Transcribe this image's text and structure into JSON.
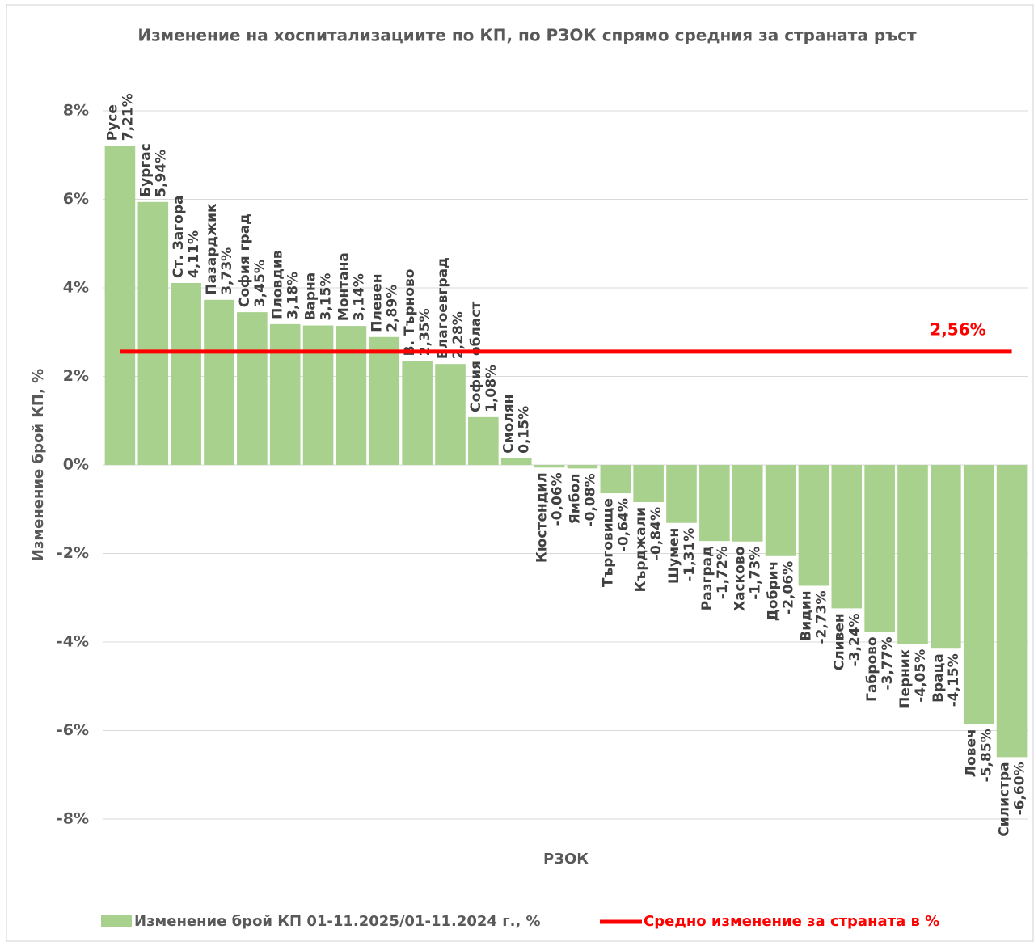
{
  "chart_data": {
    "type": "bar",
    "title": "Изменение на хоспитализациите по КП, по РЗОК спрямо средния за страната ръст",
    "x_label": "РЗОК",
    "y_label": "Изменение брой КП, %",
    "categories": [
      "Русе",
      "Бургас",
      "Ст. Загора",
      "Пазарджик",
      "София град",
      "Пловдив",
      "Варна",
      "Монтана",
      "Плевен",
      "В. Търново",
      "Благоевград",
      "София област",
      "Смолян",
      "Кюстендил",
      "Ямбол",
      "Търговище",
      "Кърджали",
      "Шумен",
      "Разград",
      "Хасково",
      "Добрич",
      "Видин",
      "Сливен",
      "Габрово",
      "Перник",
      "Враца",
      "Ловеч",
      "Силистра"
    ],
    "series": [
      {
        "name": "Изменение брой КП 01-11.2025/01-11.2024 г., %",
        "color": "#a9d18e",
        "values": [
          7.21,
          5.94,
          4.11,
          3.73,
          3.45,
          3.18,
          3.15,
          3.14,
          2.89,
          2.35,
          2.28,
          1.08,
          0.15,
          -0.06,
          -0.08,
          -0.64,
          -0.84,
          -1.31,
          -1.72,
          -1.73,
          -2.06,
          -2.73,
          -3.24,
          -3.77,
          -4.05,
          -4.15,
          -5.85,
          -6.6
        ],
        "value_labels": [
          "7,21%",
          "5,94%",
          "4,11%",
          "3,73%",
          "3,45%",
          "3,18%",
          "3,15%",
          "3,14%",
          "2,89%",
          "2,35%",
          "2,28%",
          "1,08%",
          "0,15%",
          "-0,06%",
          "-0,08%",
          "-0,64%",
          "-0,84%",
          "-1,31%",
          "-1,72%",
          "-1,73%",
          "-2,06%",
          "-2,73%",
          "-3,24%",
          "-3,77%",
          "-4,05%",
          "-4,15%",
          "-5,85%",
          "-6,60%"
        ]
      }
    ],
    "reference_line": {
      "name": "Средно изменение за страната в %",
      "value": 2.56,
      "value_label": "2,56%",
      "color": "#ff0000"
    },
    "ylim": [
      -8,
      8
    ],
    "yticks": [
      {
        "value": -8,
        "label": "-8%"
      },
      {
        "value": -6,
        "label": "-6%"
      },
      {
        "value": -4,
        "label": "-4%"
      },
      {
        "value": -2,
        "label": "-2%"
      },
      {
        "value": 0,
        "label": "0%"
      },
      {
        "value": 2,
        "label": "2%"
      },
      {
        "value": 4,
        "label": "4%"
      },
      {
        "value": 6,
        "label": "6%"
      },
      {
        "value": 8,
        "label": "8%"
      }
    ],
    "grid": true
  }
}
